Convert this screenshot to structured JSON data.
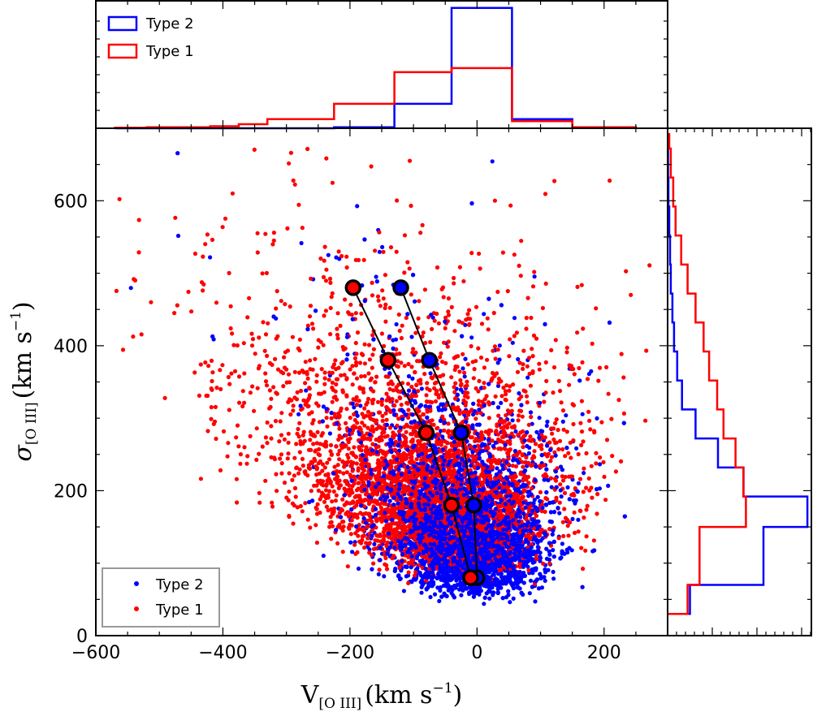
{
  "chart_data": [
    {
      "id": "scatter",
      "type": "scatter",
      "xlabel": {
        "main": "V",
        "sub": "[O III]",
        "unit": "(km s",
        "exp": "−1",
        "close": ")"
      },
      "ylabel": {
        "main": "σ",
        "sub": "[O III]",
        "unit": "(km s",
        "exp": "−1",
        "close": ")"
      },
      "xlim": [
        -600,
        300
      ],
      "ylim": [
        0,
        700
      ],
      "xticks": [
        -600,
        -400,
        -200,
        0,
        200
      ],
      "xtick_labels": [
        "−600",
        "−400",
        "−200",
        "0",
        "200"
      ],
      "yticks": [
        0,
        200,
        400,
        600
      ],
      "ytick_labels": [
        "0",
        "200",
        "400",
        "600"
      ],
      "legend_position": "lower-left",
      "series": [
        {
          "name": "Type 2",
          "color": "#0000ff",
          "cloud": {
            "approx_points": 4500,
            "v_center": -10,
            "s_center": 150,
            "note": "dense cloud centered near V≈0, σ≈100–250"
          },
          "medians": [
            {
              "x": 0,
              "y": 80
            },
            {
              "x": -5,
              "y": 180
            },
            {
              "x": -25,
              "y": 280
            },
            {
              "x": -75,
              "y": 380
            },
            {
              "x": -120,
              "y": 480
            }
          ]
        },
        {
          "name": "Type 1",
          "color": "#ff0000",
          "cloud": {
            "approx_points": 4000,
            "v_center": -60,
            "s_center": 230,
            "note": "cloud shifted to negative V and higher σ"
          },
          "medians": [
            {
              "x": -10,
              "y": 80
            },
            {
              "x": -40,
              "y": 180
            },
            {
              "x": -80,
              "y": 280
            },
            {
              "x": -140,
              "y": 380
            },
            {
              "x": -195,
              "y": 480
            }
          ]
        }
      ]
    },
    {
      "id": "top-histogram",
      "type": "histogram",
      "orientation": "vertical",
      "xlim": [
        -600,
        300
      ],
      "bin_edges": [
        -570,
        -520,
        -475,
        -420,
        -375,
        -330,
        -225,
        -130,
        -40,
        55,
        150,
        250
      ],
      "legend_position": "top-left",
      "series": [
        {
          "name": "Type 2",
          "color": "#0000ff",
          "counts": [
            0,
            0,
            0,
            0,
            0,
            0,
            1,
            24,
            118,
            9,
            1
          ]
        },
        {
          "name": "Type 1",
          "color": "#ff0000",
          "counts": [
            0.5,
            1,
            1,
            2,
            4,
            9,
            24,
            55,
            59,
            7,
            1
          ]
        }
      ]
    },
    {
      "id": "right-histogram",
      "type": "histogram",
      "orientation": "horizontal",
      "ylim": [
        0,
        700
      ],
      "bin_edges": [
        30,
        70,
        150,
        192,
        232,
        272,
        312,
        352,
        392,
        432,
        472,
        512,
        552,
        592,
        632,
        672,
        692
      ],
      "series": [
        {
          "name": "Type 2",
          "color": "#0000ff",
          "counts": [
            28,
            120,
            175,
            95,
            63,
            35,
            18,
            12,
            8,
            6,
            4,
            3,
            2,
            1,
            0.5,
            0.3
          ]
        },
        {
          "name": "Type 1",
          "color": "#ff0000",
          "counts": [
            25,
            40,
            98,
            95,
            85,
            70,
            62,
            52,
            45,
            35,
            25,
            17,
            10,
            7,
            4,
            2
          ]
        }
      ]
    }
  ]
}
